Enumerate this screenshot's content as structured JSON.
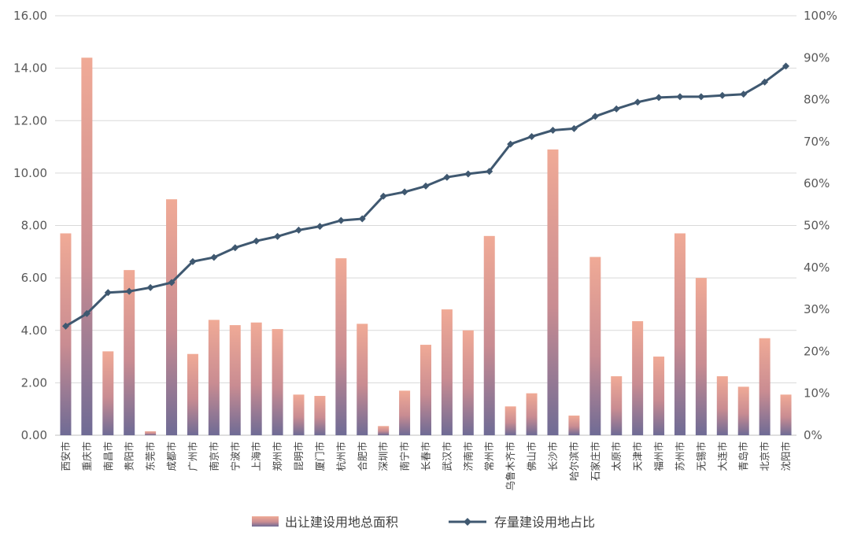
{
  "chart_data": {
    "type": "bar",
    "categories": [
      "西安市",
      "重庆市",
      "南昌市",
      "贵阳市",
      "东莞市",
      "成都市",
      "广州市",
      "南京市",
      "宁波市",
      "上海市",
      "郑州市",
      "昆明市",
      "厦门市",
      "杭州市",
      "合肥市",
      "深圳市",
      "南宁市",
      "长春市",
      "武汉市",
      "济南市",
      "常州市",
      "乌鲁木齐市",
      "佛山市",
      "长沙市",
      "哈尔滨市",
      "石家庄市",
      "太原市",
      "天津市",
      "福州市",
      "苏州市",
      "无锡市",
      "大连市",
      "青岛市",
      "北京市",
      "沈阳市"
    ],
    "series": [
      {
        "name": "出让建设用地总面积",
        "type": "bar",
        "axis": "left",
        "color_top": "#f0aa96",
        "color_bottom": "#6f6b95",
        "values": [
          7.7,
          14.4,
          3.2,
          6.3,
          0.15,
          9.0,
          3.1,
          4.4,
          4.2,
          4.3,
          4.05,
          1.55,
          1.5,
          6.75,
          4.25,
          0.35,
          1.7,
          3.45,
          4.8,
          4.0,
          7.6,
          1.1,
          1.6,
          10.9,
          0.75,
          6.8,
          2.25,
          4.35,
          3.0,
          7.7,
          6.0,
          2.25,
          1.85,
          3.7,
          1.55
        ]
      },
      {
        "name": "存量建设用地占比",
        "type": "line",
        "axis": "right",
        "color": "#3f5870",
        "values": [
          26,
          29,
          34,
          34.3,
          35.2,
          36.4,
          41.4,
          42.4,
          44.7,
          46.3,
          47.4,
          48.9,
          49.8,
          51.2,
          51.6,
          57,
          58,
          59.4,
          61.5,
          62.3,
          62.9,
          69.4,
          71.2,
          72.7,
          73.1,
          76,
          77.8,
          79.4,
          80.5,
          80.7,
          80.7,
          81,
          81.3,
          84.2,
          88
        ]
      }
    ],
    "y_left": {
      "ylim": [
        0,
        16
      ],
      "ticks": [
        "0.00",
        "2.00",
        "4.00",
        "6.00",
        "8.00",
        "10.00",
        "12.00",
        "14.00",
        "16.00"
      ]
    },
    "y_right": {
      "ylim": [
        0,
        100
      ],
      "ticks": [
        "0%",
        "10%",
        "20%",
        "30%",
        "40%",
        "50%",
        "60%",
        "70%",
        "80%",
        "90%",
        "100%"
      ]
    },
    "grid": true,
    "legend_position": "bottom-center"
  }
}
